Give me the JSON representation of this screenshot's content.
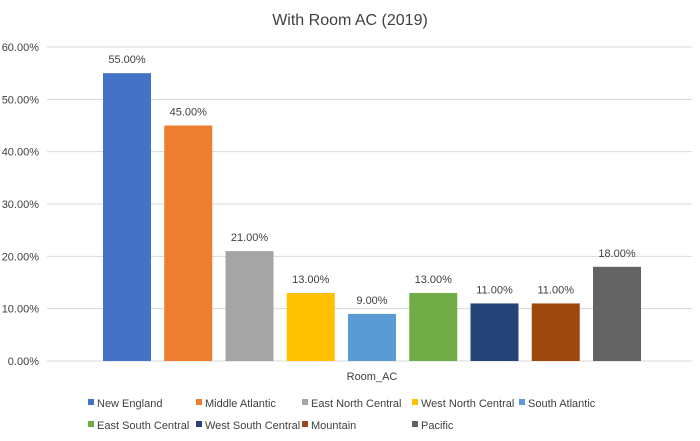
{
  "chart_data": {
    "type": "bar",
    "title": "With Room AC (2019)",
    "xlabel": "Room_AC",
    "ylabel": "",
    "ylim": [
      0,
      60
    ],
    "yticks": [
      "0.00%",
      "10.00%",
      "20.00%",
      "30.00%",
      "40.00%",
      "50.00%",
      "60.00%"
    ],
    "ytick_values": [
      0,
      10,
      20,
      30,
      40,
      50,
      60
    ],
    "grid": true,
    "legend_position": "bottom",
    "categories": [
      "Room_AC"
    ],
    "series": [
      {
        "name": "New England",
        "values": [
          55
        ],
        "label": "55.00%",
        "color": "#4472C4"
      },
      {
        "name": "Middle Atlantic",
        "values": [
          45
        ],
        "label": "45.00%",
        "color": "#ED7D31"
      },
      {
        "name": "East North Central",
        "values": [
          21
        ],
        "label": "21.00%",
        "color": "#A5A5A5"
      },
      {
        "name": "West North Central",
        "values": [
          13
        ],
        "label": "13.00%",
        "color": "#FFC000"
      },
      {
        "name": "South Atlantic",
        "values": [
          9
        ],
        "label": "9.00%",
        "color": "#5B9BD5"
      },
      {
        "name": "East South Central",
        "values": [
          13
        ],
        "label": "13.00%",
        "color": "#70AD47"
      },
      {
        "name": "West South Central",
        "values": [
          11
        ],
        "label": "11.00%",
        "color": "#264478"
      },
      {
        "name": "Mountain",
        "values": [
          11
        ],
        "label": "11.00%",
        "color": "#9E480E"
      },
      {
        "name": "Pacific",
        "values": [
          18
        ],
        "label": "18.00%",
        "color": "#636363"
      }
    ]
  }
}
